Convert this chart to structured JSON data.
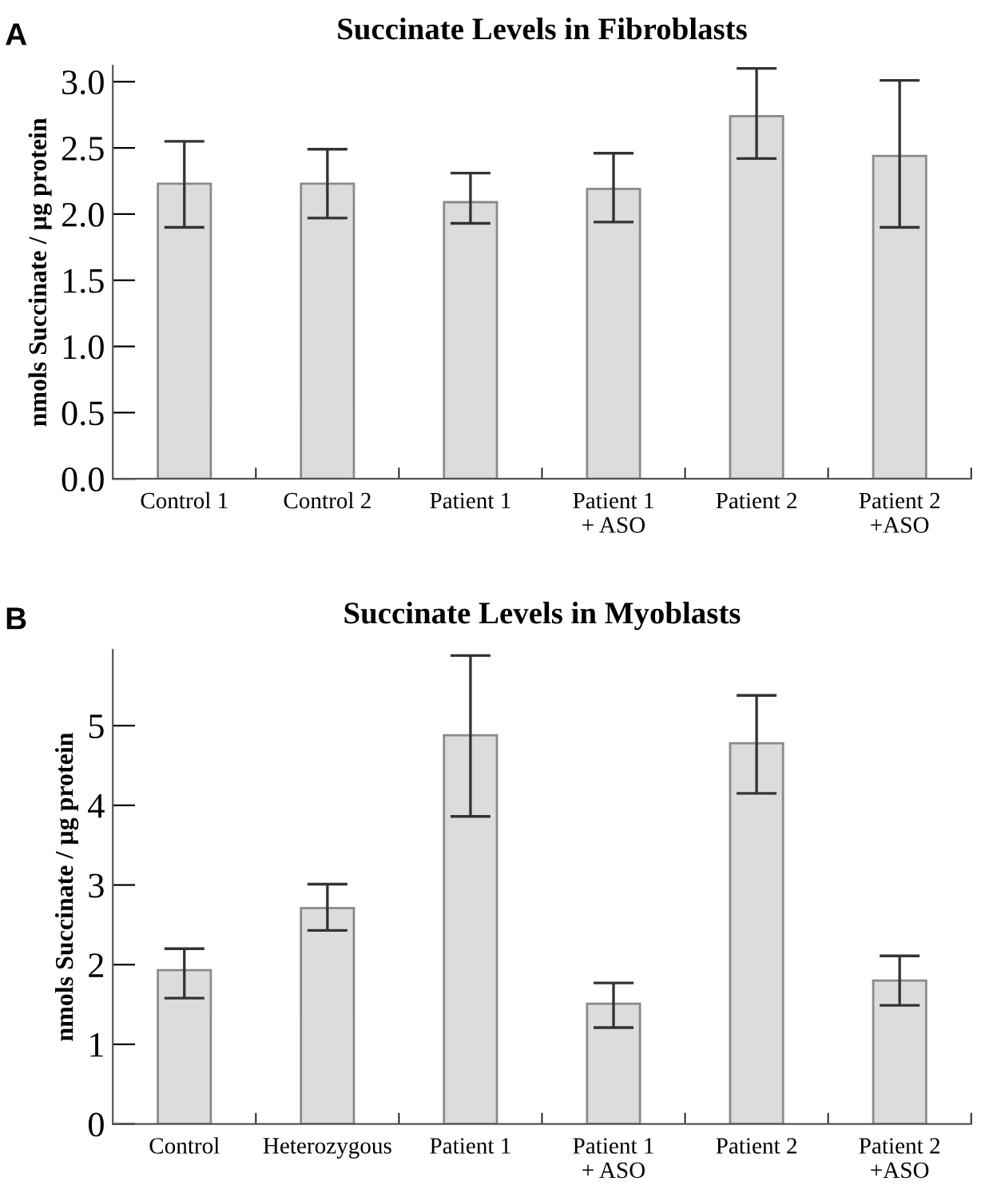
{
  "chart_data": [
    {
      "type": "bar",
      "title": "Succinate Levels in Fibroblasts",
      "ylabel": "nmols Succinate / µg protein",
      "annotations": [
        "A"
      ],
      "categories": [
        "Control 1",
        "Control 2",
        "Patient 1",
        "Patient 1\n+ ASO",
        "Patient 2",
        "Patient 2\n+ASO"
      ],
      "series": [
        {
          "color": "#dcdcdc",
          "values": [
            2.23,
            2.23,
            2.09,
            2.19,
            2.74,
            2.44
          ],
          "errors": [
            [
              1.9,
              2.55
            ],
            [
              1.97,
              2.49
            ],
            [
              1.93,
              2.31
            ],
            [
              1.94,
              2.46
            ],
            [
              2.42,
              3.1
            ],
            [
              1.9,
              3.01
            ]
          ]
        }
      ],
      "ylim": [
        0,
        3.12
      ],
      "yticks": [
        {
          "value": 0,
          "label": "0.0"
        },
        0.5,
        {
          "value": 1,
          "label": "1.0"
        },
        1.5,
        {
          "value": 2,
          "label": "2.0"
        },
        2.5,
        {
          "value": 3,
          "label": "3.0"
        }
      ],
      "grid": false,
      "legend": false
    },
    {
      "type": "bar",
      "title": "Succinate Levels in Myoblasts",
      "ylabel": "nmols Succinate / µg protein",
      "annotations": [
        "B"
      ],
      "categories": [
        "Control",
        "Heterozygous",
        "Patient 1",
        "Patient 1\n+ ASO",
        "Patient 2",
        "Patient 2\n+ASO"
      ],
      "series": [
        {
          "color": "#dcdcdc",
          "values": [
            1.93,
            2.71,
            4.88,
            1.51,
            4.78,
            1.8
          ],
          "errors": [
            [
              1.58,
              2.2
            ],
            [
              2.43,
              3.01
            ],
            [
              3.86,
              5.88
            ],
            [
              1.21,
              1.77
            ],
            [
              4.15,
              5.38
            ],
            [
              1.49,
              2.11
            ]
          ]
        }
      ],
      "ylim": [
        0,
        5.95
      ],
      "yticks": [
        0,
        1,
        2,
        3,
        4,
        5
      ],
      "grid": false,
      "legend": false
    }
  ]
}
